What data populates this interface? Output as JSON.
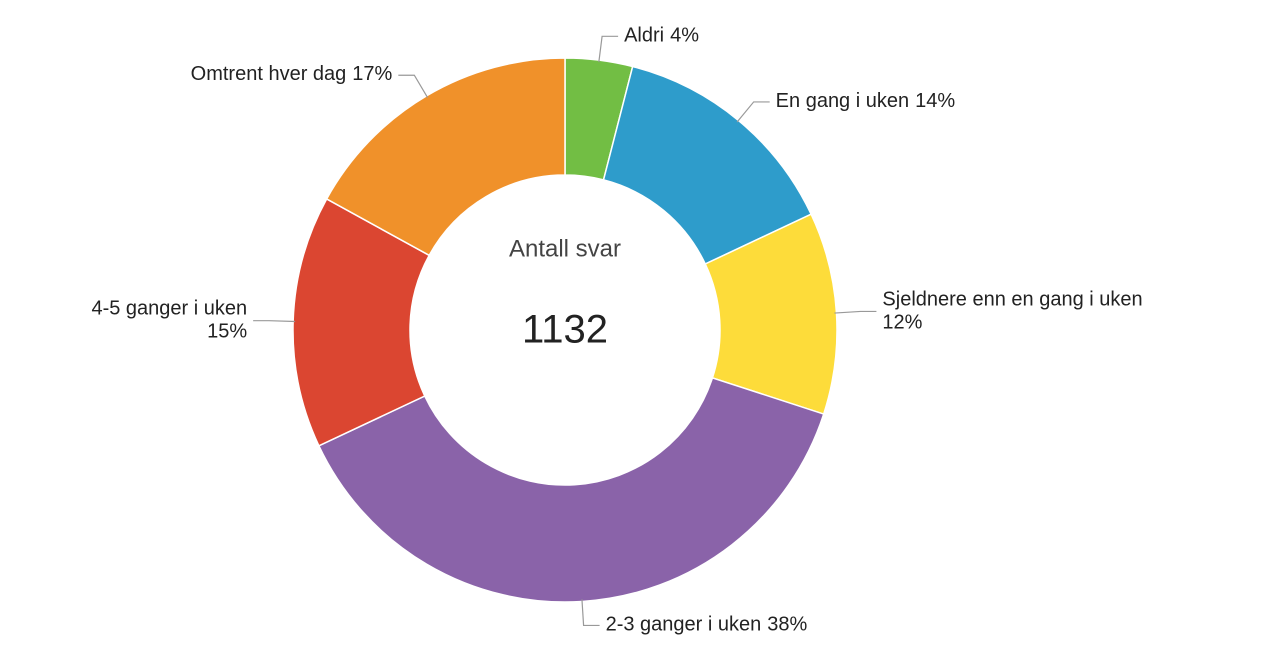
{
  "chart_data": {
    "type": "donut",
    "categories": [
      "Aldri",
      "En gang i uken",
      "Sjeldnere enn en gang i uken",
      "2-3 ganger i uken",
      "4-5 ganger i uken",
      "Omtrent hver dag"
    ],
    "values": [
      4,
      14,
      12,
      38,
      15,
      17
    ],
    "value_labels": [
      "4%",
      "14%",
      "12%",
      "38%",
      "15%",
      "17%"
    ],
    "colors": [
      "#72be44",
      "#2e9ccb",
      "#fddc3a",
      "#8a63a9",
      "#db4631",
      "#f0912a"
    ],
    "center_title": "Antall svar",
    "center_value": 1132
  }
}
